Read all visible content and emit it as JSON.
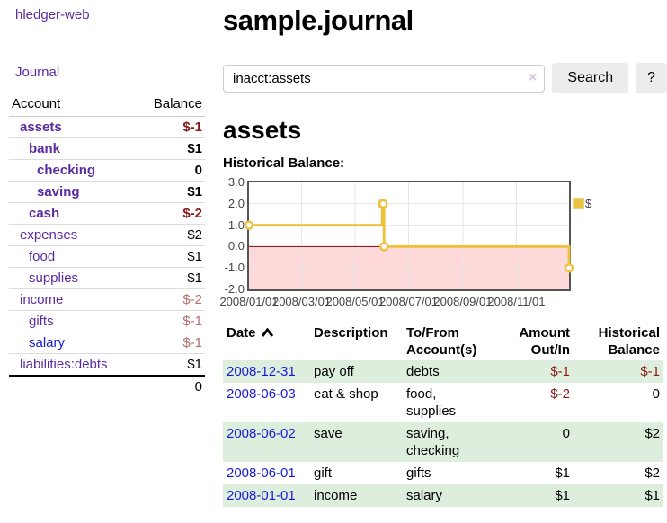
{
  "app": {
    "brand": "hledger-web"
  },
  "sidebar": {
    "journal_link": "Journal",
    "accounts": {
      "headers": {
        "account": "Account",
        "balance": "Balance"
      },
      "rows": [
        {
          "name": "assets",
          "balance": "$-1"
        },
        {
          "name": "bank",
          "balance": "$1"
        },
        {
          "name": "checking",
          "balance": "0"
        },
        {
          "name": "saving",
          "balance": "$1"
        },
        {
          "name": "cash",
          "balance": "$-2"
        },
        {
          "name": "expenses",
          "balance": "$2"
        },
        {
          "name": "food",
          "balance": "$1"
        },
        {
          "name": "supplies",
          "balance": "$1"
        },
        {
          "name": "income",
          "balance": "$-2"
        },
        {
          "name": "gifts",
          "balance": "$-1"
        },
        {
          "name": "salary",
          "balance": "$-1"
        },
        {
          "name": "liabilities:debts",
          "balance": "$1"
        }
      ],
      "total": "0"
    }
  },
  "header": {
    "title": "sample.journal"
  },
  "search": {
    "value": "inacct:assets",
    "clear_icon": "×",
    "button_label": "Search",
    "help_label": "?"
  },
  "account_page": {
    "title": "assets",
    "chart_heading": "Historical Balance:"
  },
  "chart_data": {
    "type": "line",
    "steps": true,
    "title": "Historical Balance:",
    "series": [
      {
        "name": "$",
        "color": "#edc240",
        "points": [
          [
            "2008-01-01",
            1
          ],
          [
            "2008-06-01",
            2
          ],
          [
            "2008-06-02",
            2
          ],
          [
            "2008-06-03",
            0
          ],
          [
            "2008-12-31",
            -1
          ]
        ]
      }
    ],
    "xlim": [
      "2008-01-01",
      "2008-12-31"
    ],
    "ylim": [
      -2,
      3
    ],
    "x_ticks": [
      "2008/01/01",
      "2008/03/01",
      "2008/05/01",
      "2008/07/01",
      "2008/09/01",
      "2008/11/01"
    ],
    "y_ticks": [
      3,
      2,
      1,
      0,
      -1,
      -2
    ],
    "grid": true,
    "grid_color": "#e6e6e6",
    "zero_line_color": "#8b0000",
    "negative_region_color": "#ffd9d9",
    "legend_position": "top-right"
  },
  "register": {
    "columns": {
      "date": "Date",
      "description": "Description",
      "accounts": "To/From Account(s)",
      "amount": "Amount Out/In",
      "balance": "Historical Balance"
    },
    "rows": [
      {
        "date": "2008-12-31",
        "description": "pay off",
        "accounts": "debts",
        "amount": "$-1",
        "balance": "$-1"
      },
      {
        "date": "2008-06-03",
        "description": "eat & shop",
        "accounts": "food, supplies",
        "amount": "$-2",
        "balance": "0"
      },
      {
        "date": "2008-06-02",
        "description": "save",
        "accounts": "saving, checking",
        "amount": "0",
        "balance": "$2"
      },
      {
        "date": "2008-06-01",
        "description": "gift",
        "accounts": "gifts",
        "amount": "$1",
        "balance": "$2"
      },
      {
        "date": "2008-01-01",
        "description": "income",
        "accounts": "salary",
        "amount": "$1",
        "balance": "$1"
      }
    ]
  }
}
